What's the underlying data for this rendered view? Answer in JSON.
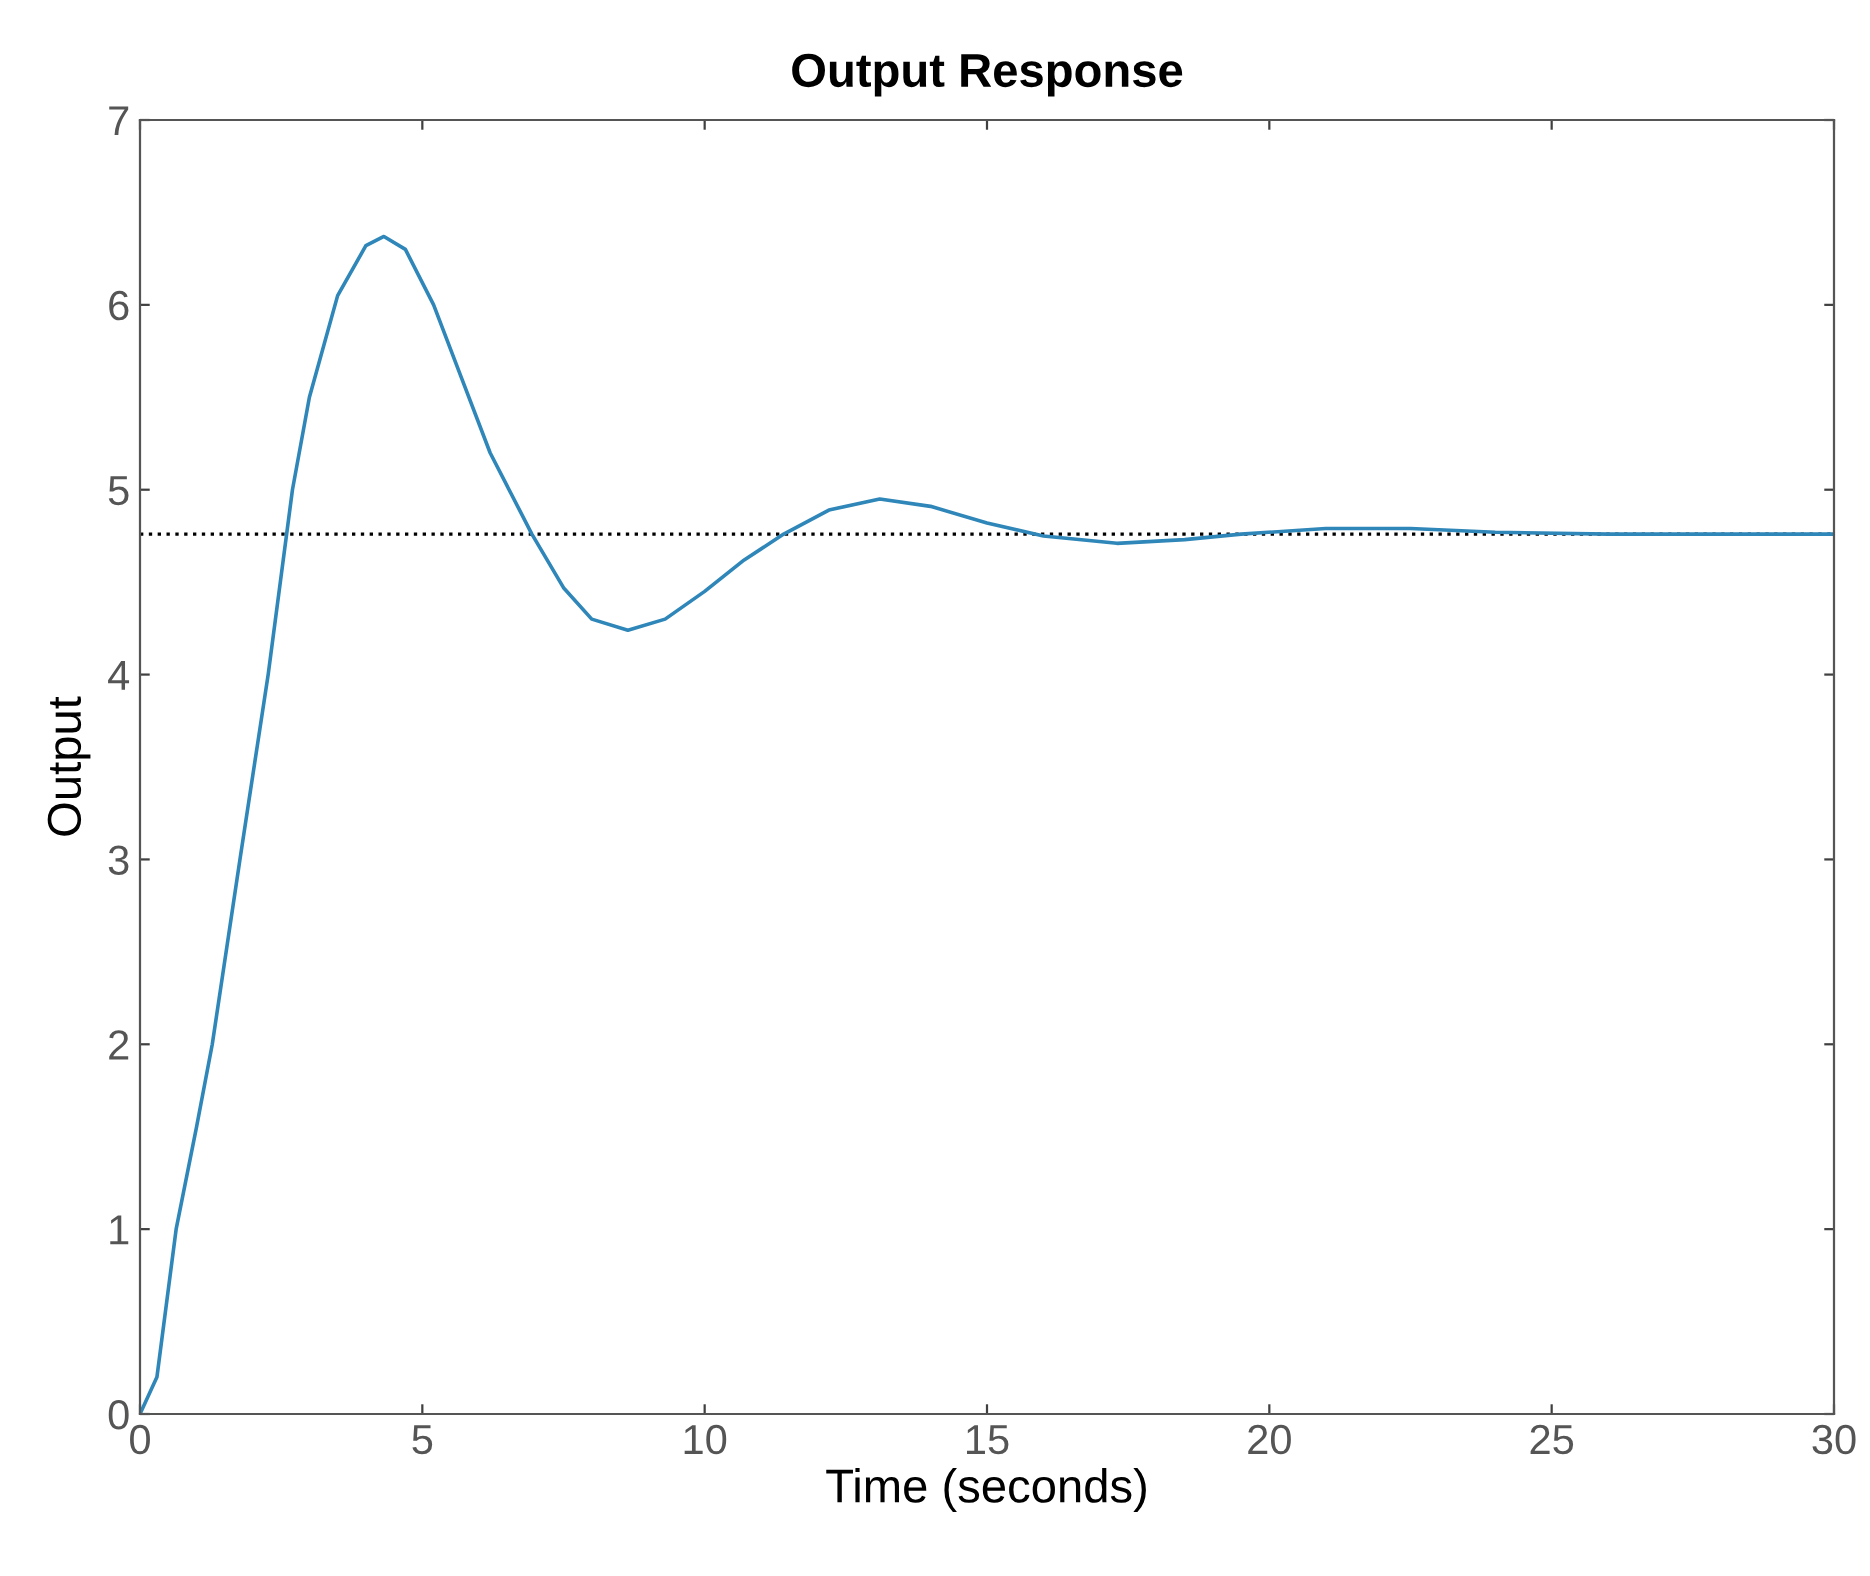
{
  "chart_data": {
    "type": "line",
    "title": "Output Response",
    "xlabel": "Time (seconds)",
    "ylabel": "Output",
    "x": [
      0,
      0.3,
      0.64,
      1.0,
      1.28,
      1.77,
      2.27,
      2.7,
      3.0,
      3.5,
      4.0,
      4.32,
      4.7,
      5.2,
      5.7,
      6.2,
      6.94,
      7.5,
      8.0,
      8.64,
      9.3,
      10,
      10.7,
      11.4,
      12.2,
      13.1,
      14,
      15,
      16,
      17.3,
      18.5,
      19.5,
      21,
      22.5,
      24,
      26,
      30
    ],
    "series": [
      {
        "color": "#2f86b8",
        "values": [
          0,
          0.2,
          1,
          1.55,
          2,
          3,
          4,
          5,
          5.5,
          6.05,
          6.32,
          6.37,
          6.3,
          6.0,
          5.6,
          5.2,
          4.76,
          4.47,
          4.3,
          4.24,
          4.3,
          4.45,
          4.62,
          4.76,
          4.89,
          4.95,
          4.91,
          4.82,
          4.75,
          4.71,
          4.73,
          4.76,
          4.79,
          4.79,
          4.77,
          4.76,
          4.76
        ]
      }
    ],
    "ref_lines": [
      {
        "axis": "y",
        "value": 4.76,
        "color": "#000000",
        "line_style": "dotted"
      }
    ],
    "xlim": [
      0,
      30
    ],
    "ylim": [
      0,
      7
    ],
    "xticks": [
      0,
      5,
      10,
      15,
      20,
      25,
      30
    ],
    "yticks": [
      0,
      1,
      2,
      3,
      4,
      5,
      6,
      7
    ],
    "marker": "none",
    "line_style": "solid"
  }
}
